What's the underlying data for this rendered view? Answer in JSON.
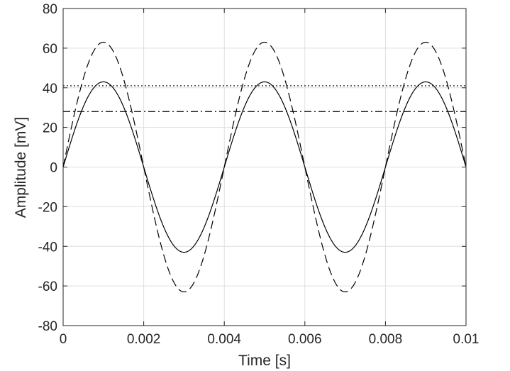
{
  "chart_data": {
    "type": "line",
    "title": "",
    "xlabel": "Time [s]",
    "ylabel": "Amplitude [mV]",
    "xlim": [
      0,
      0.01
    ],
    "ylim": [
      -80,
      80
    ],
    "xticks": [
      0,
      0.002,
      0.004,
      0.006,
      0.008,
      0.01
    ],
    "xtick_labels": [
      "0",
      "0.002",
      "0.004",
      "0.006",
      "0.008",
      "0.01"
    ],
    "yticks": [
      -80,
      -60,
      -40,
      -20,
      0,
      20,
      40,
      60,
      80
    ],
    "ytick_labels": [
      "-80",
      "-60",
      "-40",
      "-20",
      "0",
      "20",
      "40",
      "60",
      "80"
    ],
    "grid": true,
    "legend": "none",
    "frequency_hz": 250,
    "series": [
      {
        "kind": "sine",
        "style": "solid",
        "amplitude": 43,
        "color": "#000000"
      },
      {
        "kind": "sine",
        "style": "dashed",
        "amplitude": 63,
        "color": "#000000"
      },
      {
        "kind": "constant",
        "style": "dotted",
        "value": 41,
        "color": "#000000"
      },
      {
        "kind": "constant",
        "style": "dashdot",
        "value": 28,
        "color": "#000000"
      }
    ]
  }
}
